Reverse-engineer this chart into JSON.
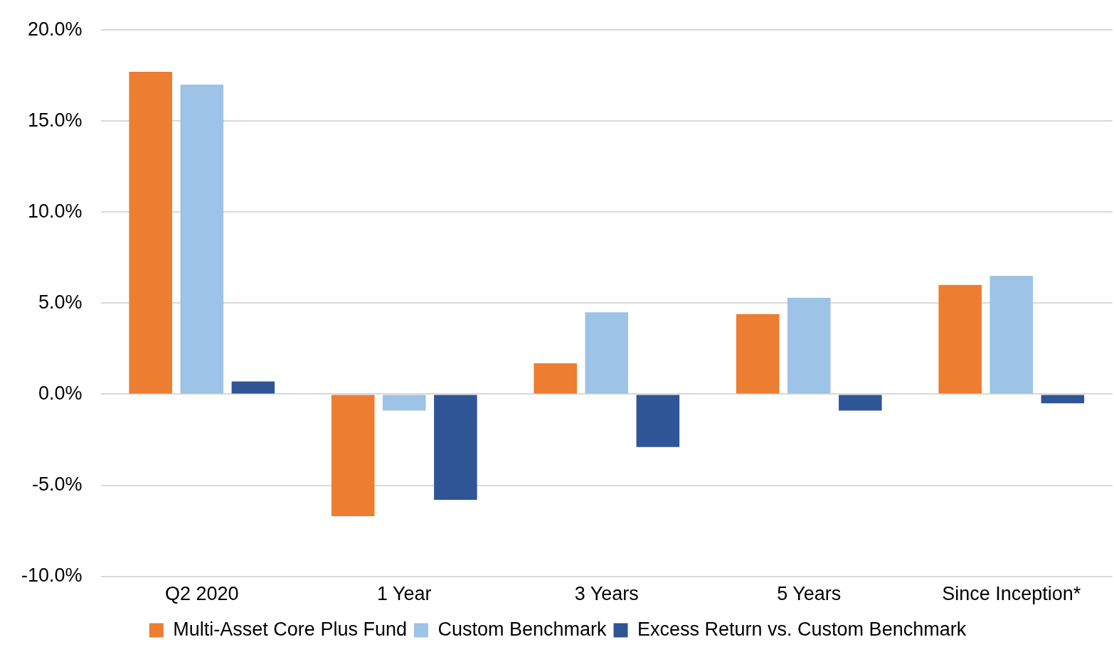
{
  "chart_data": {
    "type": "bar",
    "categories": [
      "Q2 2020",
      "1 Year",
      "3 Years",
      "5 Years",
      "Since Inception*"
    ],
    "series": [
      {
        "name": "Multi-Asset Core Plus Fund",
        "color": "#ed7d31",
        "values": [
          17.7,
          -6.7,
          1.7,
          4.4,
          6.0
        ]
      },
      {
        "name": "Custom Benchmark",
        "color": "#9dc3e6",
        "values": [
          17.0,
          -0.9,
          4.5,
          5.3,
          6.5
        ]
      },
      {
        "name": "Excess Return vs. Custom Benchmark",
        "color": "#2f5597",
        "values": [
          0.7,
          -5.8,
          -2.9,
          -0.9,
          -0.5
        ]
      }
    ],
    "ylim": [
      -10,
      20
    ],
    "yticks": [
      {
        "value": -10,
        "label": "-10.0%"
      },
      {
        "value": -5,
        "label": "-5.0%"
      },
      {
        "value": 0,
        "label": "0.0%"
      },
      {
        "value": 5,
        "label": "5.0%"
      },
      {
        "value": 10,
        "label": "10.0%"
      },
      {
        "value": 15,
        "label": "15.0%"
      },
      {
        "value": 20,
        "label": "20.0%"
      }
    ],
    "grid": "y",
    "legend": "bottom"
  }
}
